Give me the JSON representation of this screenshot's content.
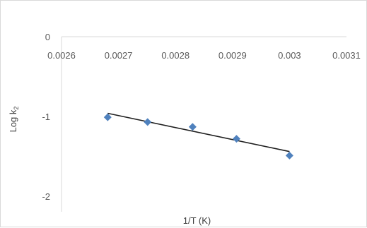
{
  "chart_data": {
    "type": "scatter",
    "xlabel": "1/T (K)",
    "ylabel_main": "Log k",
    "ylabel_sub": "2",
    "xlim": [
      0.0026,
      0.0031
    ],
    "ylim": [
      -2,
      0
    ],
    "x_ticks": [
      "0.0026",
      "0.0027",
      "0.0028",
      "0.0029",
      "0.003",
      "0.0031"
    ],
    "y_ticks": [
      "0",
      "-1",
      "-2"
    ],
    "grid": false,
    "legend": "none",
    "marker_color": "#4f81bd",
    "trendline_color": "#1f1f1f",
    "points": [
      {
        "x": 0.002681,
        "y": -1.01
      },
      {
        "x": 0.002751,
        "y": -1.07
      },
      {
        "x": 0.00283,
        "y": -1.13
      },
      {
        "x": 0.002907,
        "y": -1.28
      },
      {
        "x": 0.003,
        "y": -1.49
      }
    ],
    "trendline": {
      "x": [
        0.002681,
        0.003
      ],
      "y": [
        -0.96,
        -1.44
      ]
    }
  }
}
